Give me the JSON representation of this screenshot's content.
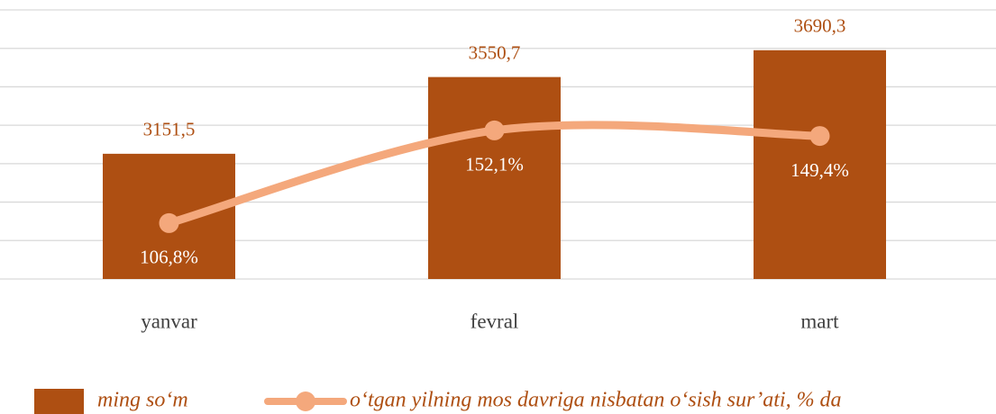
{
  "chart_data": {
    "type": "bar_line",
    "categories": [
      "yanvar",
      "fevral",
      "mart"
    ],
    "ylim": [
      2500,
      3900
    ],
    "yticks": [
      2500,
      2700,
      2900,
      3100,
      3300,
      3500,
      3700,
      3900
    ],
    "grid": true,
    "y2lim": [
      79.5,
      211
    ],
    "legend": "bottom",
    "series": [
      {
        "name": "ming so‘m",
        "type": "bar",
        "color": "#ae4f12",
        "values": [
          3151.5,
          3550.7,
          3690.3
        ],
        "value_labels": [
          "3151,5",
          "3550,7",
          "3690,3"
        ]
      },
      {
        "name": "o‘tgan yilning mos davriga nisbatan o‘sish sur’ati, % da",
        "type": "line",
        "axis": "y2",
        "color": "#f4a87c",
        "values": [
          106.8,
          152.1,
          149.4
        ],
        "value_labels": [
          "106,8%",
          "152,1%",
          "149,4%"
        ]
      }
    ]
  }
}
